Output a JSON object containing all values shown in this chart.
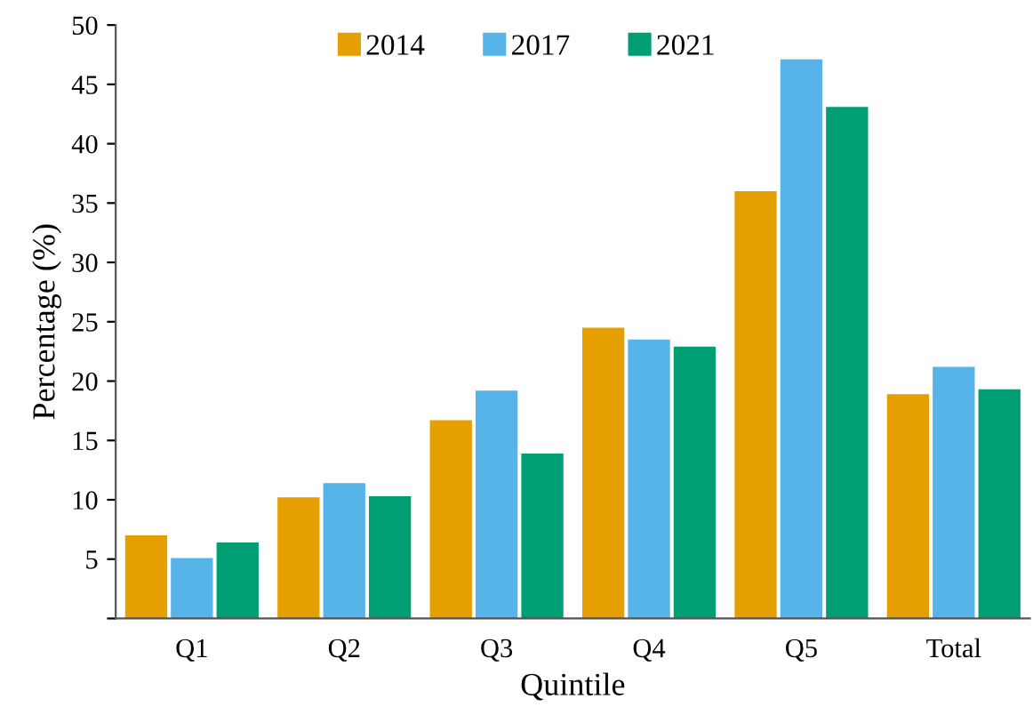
{
  "chart_data": {
    "type": "bar",
    "xlabel": "Quintile",
    "ylabel": "Percentage (%)",
    "categories": [
      "Q1",
      "Q2",
      "Q3",
      "Q4",
      "Q5",
      "Total"
    ],
    "series": [
      {
        "name": "2014",
        "color": "#e69f00",
        "values": [
          7.0,
          10.2,
          16.7,
          24.5,
          36.0,
          18.9
        ]
      },
      {
        "name": "2017",
        "color": "#56b4e9",
        "values": [
          5.1,
          11.4,
          19.2,
          23.5,
          47.1,
          21.2
        ]
      },
      {
        "name": "2021",
        "color": "#009e73",
        "values": [
          6.4,
          10.3,
          13.9,
          22.9,
          43.1,
          19.3
        ]
      }
    ],
    "ylim": [
      0,
      50
    ],
    "yticks": [
      {
        "value": 0,
        "label": null
      },
      5,
      10,
      15,
      20,
      25,
      30,
      35,
      40,
      45,
      50
    ],
    "grid": false,
    "legend": "top"
  }
}
